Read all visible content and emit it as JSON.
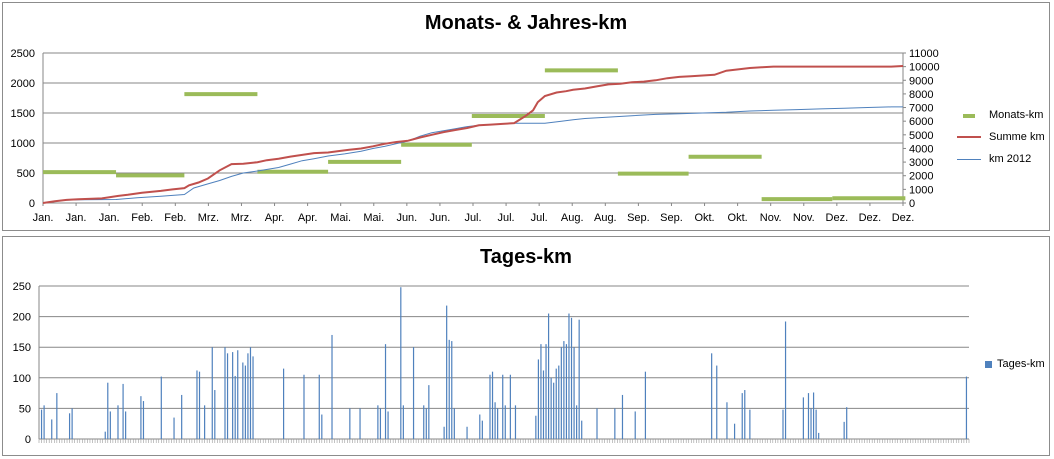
{
  "chart_data": [
    {
      "type": "line",
      "title": "Monats- & Jahres-km",
      "x_tick_labels": [
        "Jan.",
        "Jan.",
        "Jan.",
        "Feb.",
        "Feb.",
        "Mrz.",
        "Mrz.",
        "Apr.",
        "Apr.",
        "Mai.",
        "Mai.",
        "Jun.",
        "Jun.",
        "Jul.",
        "Jul.",
        "Jul.",
        "Aug.",
        "Aug.",
        "Sep.",
        "Sep.",
        "Okt.",
        "Okt.",
        "Nov.",
        "Nov.",
        "Dez.",
        "Dez.",
        "Dez."
      ],
      "x_range": [
        0,
        365
      ],
      "y_left": {
        "min": 0,
        "max": 2500,
        "ticks": [
          0,
          500,
          1000,
          1500,
          2000,
          2500
        ]
      },
      "y_right": {
        "min": 0,
        "max": 11000,
        "ticks": [
          0,
          1000,
          2000,
          3000,
          4000,
          5000,
          6000,
          7000,
          8000,
          9000,
          10000,
          11000
        ]
      },
      "grid": true,
      "legend_position": "right",
      "series": [
        {
          "name": "Monats-km",
          "kind": "monthly-segments",
          "axis": "left",
          "color": "#9bbb59",
          "segments": [
            {
              "x0": 0,
              "x1": 31,
              "y": 515
            },
            {
              "x0": 31,
              "x1": 60,
              "y": 460
            },
            {
              "x0": 60,
              "x1": 91,
              "y": 1815
            },
            {
              "x0": 91,
              "x1": 121,
              "y": 520
            },
            {
              "x0": 121,
              "x1": 152,
              "y": 685
            },
            {
              "x0": 152,
              "x1": 182,
              "y": 970
            },
            {
              "x0": 182,
              "x1": 213,
              "y": 1450
            },
            {
              "x0": 213,
              "x1": 244,
              "y": 2210
            },
            {
              "x0": 244,
              "x1": 274,
              "y": 490
            },
            {
              "x0": 274,
              "x1": 305,
              "y": 770
            },
            {
              "x0": 305,
              "x1": 335,
              "y": 65
            },
            {
              "x0": 335,
              "x1": 366,
              "y": 80
            }
          ]
        },
        {
          "name": "Summe km",
          "axis": "right",
          "color": "#c0504d",
          "x": [
            0,
            5,
            10,
            15,
            25,
            32,
            36,
            42,
            50,
            55,
            60,
            62,
            66,
            70,
            75,
            80,
            85,
            91,
            95,
            100,
            105,
            110,
            115,
            121,
            125,
            130,
            135,
            140,
            145,
            150,
            155,
            160,
            165,
            170,
            175,
            180,
            185,
            190,
            195,
            200,
            205,
            208,
            210,
            213,
            218,
            222,
            225,
            230,
            235,
            240,
            245,
            250,
            255,
            260,
            265,
            270,
            275,
            280,
            285,
            290,
            295,
            300,
            305,
            310,
            315,
            320,
            325,
            330,
            335,
            340,
            345,
            350,
            355,
            360,
            365
          ],
          "y": [
            0,
            130,
            230,
            270,
            340,
            520,
            600,
            750,
            890,
            1000,
            1090,
            1300,
            1500,
            1800,
            2400,
            2850,
            2880,
            2990,
            3140,
            3250,
            3400,
            3530,
            3660,
            3700,
            3800,
            3900,
            4000,
            4160,
            4340,
            4470,
            4570,
            4800,
            5000,
            5200,
            5350,
            5500,
            5700,
            5750,
            5800,
            5860,
            6400,
            6800,
            7400,
            7850,
            8100,
            8200,
            8300,
            8400,
            8550,
            8700,
            8750,
            8850,
            8900,
            9000,
            9150,
            9250,
            9300,
            9350,
            9400,
            9700,
            9800,
            9900,
            9950,
            10000,
            10000,
            10000,
            10000,
            10000,
            10000,
            10000,
            10000,
            10000,
            10000,
            10000,
            10050
          ]
        },
        {
          "name": "km 2012",
          "axis": "right",
          "color": "#4f81bd",
          "x": [
            0,
            8,
            16,
            31,
            40,
            50,
            55,
            60,
            64,
            70,
            75,
            80,
            85,
            91,
            100,
            105,
            110,
            115,
            121,
            128,
            135,
            140,
            145,
            150,
            155,
            160,
            165,
            175,
            180,
            185,
            190,
            195,
            200,
            213,
            220,
            225,
            230,
            240,
            250,
            260,
            270,
            280,
            290,
            300,
            310,
            320,
            330,
            340,
            350,
            360,
            365
          ],
          "y": [
            0,
            200,
            240,
            260,
            380,
            500,
            560,
            620,
            1100,
            1400,
            1650,
            1950,
            2200,
            2350,
            2600,
            2850,
            3100,
            3250,
            3450,
            3600,
            3800,
            4000,
            4150,
            4350,
            4550,
            4900,
            5150,
            5450,
            5600,
            5700,
            5750,
            5800,
            5850,
            5850,
            6000,
            6100,
            6200,
            6300,
            6400,
            6500,
            6550,
            6600,
            6650,
            6750,
            6800,
            6850,
            6900,
            6950,
            7000,
            7050,
            7050
          ]
        }
      ]
    },
    {
      "type": "bar",
      "title": "Tages-km",
      "y_range": [
        0,
        250
      ],
      "y_ticks": [
        0,
        50,
        100,
        150,
        200,
        250
      ],
      "x_range": [
        0,
        365
      ],
      "grid": true,
      "legend_position": "right",
      "series": [
        {
          "name": "Tages-km",
          "color": "#4f81bd",
          "points": [
            [
              1,
              48
            ],
            [
              2,
              55
            ],
            [
              5,
              32
            ],
            [
              7,
              75
            ],
            [
              12,
              42
            ],
            [
              13,
              50
            ],
            [
              26,
              12
            ],
            [
              27,
              92
            ],
            [
              28,
              45
            ],
            [
              31,
              55
            ],
            [
              33,
              90
            ],
            [
              34,
              45
            ],
            [
              40,
              70
            ],
            [
              41,
              62
            ],
            [
              48,
              102
            ],
            [
              53,
              35
            ],
            [
              56,
              72
            ],
            [
              62,
              112
            ],
            [
              63,
              110
            ],
            [
              65,
              55
            ],
            [
              68,
              150
            ],
            [
              69,
              80
            ],
            [
              73,
              150
            ],
            [
              74,
              140
            ],
            [
              76,
              142
            ],
            [
              77,
              103
            ],
            [
              78,
              145
            ],
            [
              80,
              125
            ],
            [
              81,
              120
            ],
            [
              82,
              140
            ],
            [
              83,
              150
            ],
            [
              84,
              135
            ],
            [
              96,
              115
            ],
            [
              104,
              105
            ],
            [
              110,
              105
            ],
            [
              111,
              40
            ],
            [
              115,
              170
            ],
            [
              122,
              50
            ],
            [
              126,
              50
            ],
            [
              133,
              55
            ],
            [
              134,
              50
            ],
            [
              136,
              155
            ],
            [
              137,
              45
            ],
            [
              142,
              248
            ],
            [
              143,
              55
            ],
            [
              147,
              150
            ],
            [
              151,
              55
            ],
            [
              152,
              50
            ],
            [
              153,
              88
            ],
            [
              159,
              20
            ],
            [
              160,
              218
            ],
            [
              161,
              162
            ],
            [
              162,
              160
            ],
            [
              163,
              50
            ],
            [
              168,
              20
            ],
            [
              173,
              40
            ],
            [
              174,
              30
            ],
            [
              177,
              105
            ],
            [
              178,
              110
            ],
            [
              179,
              60
            ],
            [
              180,
              50
            ],
            [
              182,
              105
            ],
            [
              183,
              55
            ],
            [
              185,
              105
            ],
            [
              187,
              55
            ],
            [
              195,
              38
            ],
            [
              196,
              130
            ],
            [
              197,
              155
            ],
            [
              198,
              112
            ],
            [
              199,
              155
            ],
            [
              200,
              205
            ],
            [
              201,
              100
            ],
            [
              202,
              92
            ],
            [
              203,
              115
            ],
            [
              204,
              120
            ],
            [
              205,
              150
            ],
            [
              206,
              160
            ],
            [
              207,
              155
            ],
            [
              208,
              205
            ],
            [
              209,
              198
            ],
            [
              210,
              150
            ],
            [
              211,
              55
            ],
            [
              212,
              195
            ],
            [
              213,
              30
            ],
            [
              219,
              50
            ],
            [
              226,
              50
            ],
            [
              229,
              72
            ],
            [
              234,
              45
            ],
            [
              238,
              110
            ],
            [
              264,
              140
            ],
            [
              266,
              120
            ],
            [
              270,
              60
            ],
            [
              273,
              25
            ],
            [
              276,
              75
            ],
            [
              277,
              80
            ],
            [
              279,
              48
            ],
            [
              292,
              48
            ],
            [
              293,
              192
            ],
            [
              300,
              68
            ],
            [
              302,
              75
            ],
            [
              303,
              50
            ],
            [
              304,
              76
            ],
            [
              305,
              48
            ],
            [
              306,
              10
            ],
            [
              316,
              28
            ],
            [
              317,
              52
            ],
            [
              364,
              102
            ]
          ]
        }
      ]
    }
  ]
}
